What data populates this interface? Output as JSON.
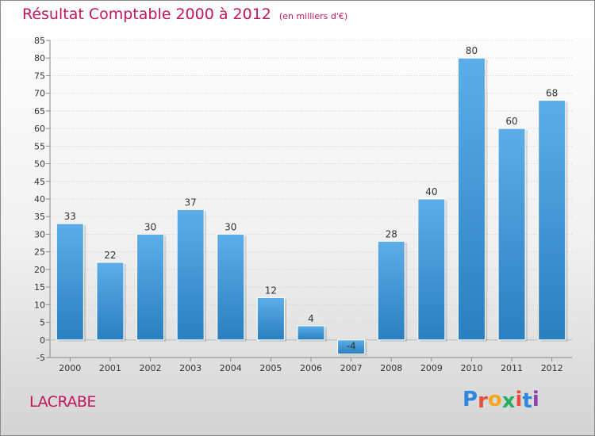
{
  "header": {
    "title": "Résultat Comptable 2000 à 2012",
    "unit": "(en milliers d'€)"
  },
  "footer": {
    "location": "LACRABE",
    "brand": [
      "P",
      "r",
      "o",
      "x",
      "i",
      "t",
      "i"
    ]
  },
  "colors": {
    "title": "#c2185b",
    "bar_top": "#5dade8",
    "bar_bottom": "#2a7fc0",
    "brand": [
      "#2e86de",
      "#e74c3c",
      "#f5a623",
      "#27ae60",
      "#e74c3c",
      "#2e86de",
      "#8e44ad"
    ]
  },
  "chart_data": {
    "type": "bar",
    "title": "Résultat Comptable 2000 à 2012",
    "xlabel": "",
    "ylabel": "",
    "ylim": [
      -5,
      85
    ],
    "yticks": [
      -5,
      0,
      5,
      10,
      15,
      20,
      25,
      30,
      35,
      40,
      45,
      50,
      55,
      60,
      65,
      70,
      75,
      80,
      85
    ],
    "grid": true,
    "categories": [
      "2000",
      "2001",
      "2002",
      "2003",
      "2004",
      "2005",
      "2006",
      "2007",
      "2008",
      "2009",
      "2010",
      "2011",
      "2012"
    ],
    "values": [
      33,
      22,
      30,
      37,
      30,
      12,
      4,
      -4,
      28,
      40,
      80,
      60,
      68
    ],
    "data_labels": [
      "33",
      "22",
      "30",
      "37",
      "30",
      "12",
      "4",
      "-4",
      "28",
      "40",
      "80",
      "60",
      "68"
    ]
  }
}
